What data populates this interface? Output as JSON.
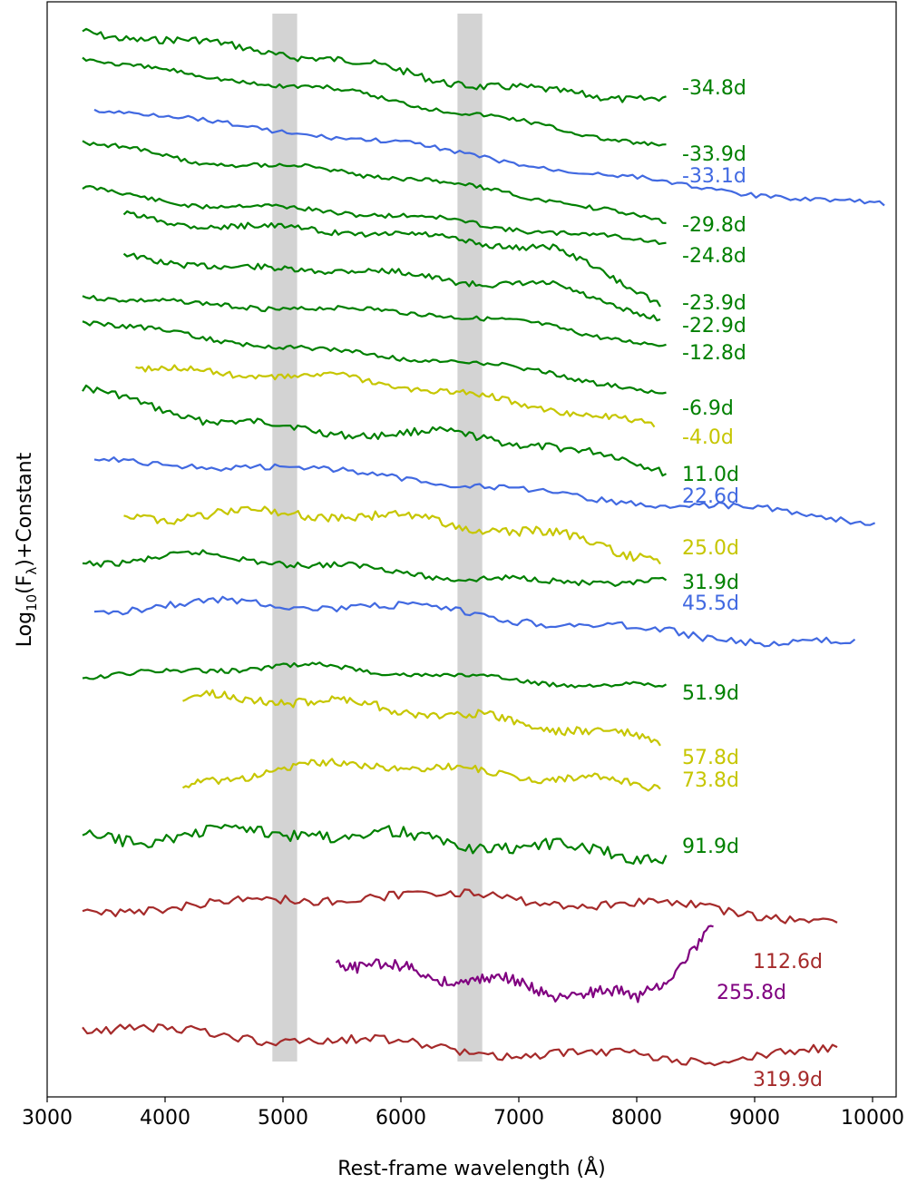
{
  "chart_data": {
    "type": "line",
    "title": "",
    "xlabel": "Rest-frame wavelength (Å)",
    "ylabel_base": "Log",
    "ylabel_sub": "10",
    "ylabel_mid": "(F",
    "ylabel_lambda": "λ",
    "ylabel_tail": ")+Constant",
    "xlim": [
      3000,
      10200
    ],
    "xticks": [
      3000,
      4000,
      5000,
      6000,
      7000,
      8000,
      9000,
      10000
    ],
    "yticks_shown": false,
    "grid": false,
    "legend": "none",
    "shaded_bands": [
      {
        "x0": 4910,
        "x1": 5120,
        "color": "#d3d3d3"
      },
      {
        "x0": 6480,
        "x1": 6690,
        "color": "#d3d3d3"
      }
    ],
    "colors": {
      "green": "#008000",
      "blue": "#4169e1",
      "yellow": "#c6c600",
      "brown": "#a52a2a",
      "purple": "#800080"
    },
    "series": [
      {
        "label": "-34.8d",
        "color": "green",
        "xmin": 3300,
        "xmax": 8250,
        "y": [
          34,
          48,
          62,
          86,
          103,
          107
        ],
        "noise": 5
      },
      {
        "label": "-33.9d",
        "color": "green",
        "xmin": 3300,
        "xmax": 8250,
        "y": [
          62,
          85,
          96,
          118,
          140,
          163
        ],
        "noise": 3
      },
      {
        "label": "-33.1d",
        "color": "blue",
        "xmin": 3400,
        "xmax": 10100,
        "y": [
          120,
          140,
          160,
          188,
          210,
          227
        ],
        "noise": 3
      },
      {
        "label": "-29.8d",
        "color": "green",
        "xmin": 3300,
        "xmax": 8250,
        "y": [
          157,
          178,
          186,
          200,
          220,
          246
        ],
        "noise": 3
      },
      {
        "label": "-24.8d",
        "color": "green",
        "xmin": 3300,
        "xmax": 8250,
        "y": [
          208,
          226,
          231,
          241,
          256,
          267
        ],
        "noise": 3
      },
      {
        "label": "-23.9d",
        "color": "green",
        "xmin": 3650,
        "xmax": 8200,
        "y": [
          238,
          250,
          254,
          263,
          274,
          332
        ],
        "noise": 4
      },
      {
        "label": "-22.9d",
        "color": "green",
        "xmin": 3650,
        "xmax": 8200,
        "y": [
          280,
          297,
          296,
          308,
          316,
          350
        ],
        "noise": 4
      },
      {
        "label": "-12.8d",
        "color": "green",
        "xmin": 3300,
        "xmax": 8250,
        "y": [
          325,
          336,
          340,
          345,
          360,
          382
        ],
        "noise": 3
      },
      {
        "label": "-6.9d",
        "color": "green",
        "xmin": 3300,
        "xmax": 8250,
        "y": [
          353,
          372,
          386,
          396,
          410,
          437
        ],
        "noise": 3
      },
      {
        "label": "-4.0d",
        "color": "yellow",
        "xmin": 3750,
        "xmax": 8150,
        "y": [
          406,
          412,
          416,
          432,
          450,
          470
        ],
        "noise": 4
      },
      {
        "label": "11.0d",
        "color": "green",
        "xmin": 3300,
        "xmax": 8250,
        "y": [
          430,
          460,
          476,
          478,
          490,
          520
        ],
        "noise": 5
      },
      {
        "label": "22.6d",
        "color": "blue",
        "xmin": 3400,
        "xmax": 10020,
        "y": [
          508,
          514,
          525,
          548,
          558,
          575
        ],
        "noise": 4
      },
      {
        "label": "25.0d",
        "color": "yellow",
        "xmin": 3650,
        "xmax": 8200,
        "y": [
          570,
          566,
          566,
          576,
          590,
          615
        ],
        "noise": 6
      },
      {
        "label": "31.9d",
        "color": "green",
        "xmin": 3300,
        "xmax": 8250,
        "y": [
          620,
          612,
          622,
          634,
          642,
          640
        ],
        "noise": 4
      },
      {
        "label": "45.5d",
        "color": "blue",
        "xmin": 3400,
        "xmax": 9850,
        "y": [
          672,
          664,
          670,
          685,
          702,
          710
        ],
        "noise": 5
      },
      {
        "label": "51.9d",
        "color": "green",
        "xmin": 3300,
        "xmax": 8250,
        "y": [
          748,
          738,
          734,
          744,
          752,
          758
        ],
        "noise": 3
      },
      {
        "label": "57.8d",
        "color": "yellow",
        "xmin": 4150,
        "xmax": 8200,
        "y": [
          770,
          770,
          778,
          790,
          802,
          818
        ],
        "noise": 6
      },
      {
        "label": "73.8d",
        "color": "yellow",
        "xmin": 4150,
        "xmax": 8200,
        "y": [
          870,
          846,
          842,
          850,
          858,
          866
        ],
        "noise": 5
      },
      {
        "label": "91.9d",
        "color": "green",
        "xmin": 3300,
        "xmax": 8250,
        "y": [
          924,
          920,
          916,
          926,
          936,
          942
        ],
        "noise": 8
      },
      {
        "label": "112.6d",
        "color": "brown",
        "xmin": 3300,
        "xmax": 9700,
        "y": [
          1004,
          996,
          986,
          992,
          1000,
          1014
        ],
        "noise": 6
      },
      {
        "label": "255.8d",
        "color": "purple",
        "xmin": 5450,
        "xmax": 8650,
        "y": [
          1058,
          1072,
          1080,
          1094,
          1100,
          1026
        ],
        "noise": 8
      },
      {
        "label": "319.9d",
        "color": "brown",
        "xmin": 3300,
        "xmax": 9700,
        "y": [
          1132,
          1142,
          1150,
          1162,
          1166,
          1160
        ],
        "noise": 6
      }
    ],
    "epoch_labels": [
      {
        "text": "-34.8d",
        "color": "green"
      },
      {
        "text": "-33.9d",
        "color": "green"
      },
      {
        "text": "-33.1d",
        "color": "blue"
      },
      {
        "text": "-29.8d",
        "color": "green"
      },
      {
        "text": "-24.8d",
        "color": "green"
      },
      {
        "text": "-23.9d",
        "color": "green"
      },
      {
        "text": "-22.9d",
        "color": "green"
      },
      {
        "text": "-12.8d",
        "color": "green"
      },
      {
        "text": "-6.9d",
        "color": "green"
      },
      {
        "text": "-4.0d",
        "color": "yellow"
      },
      {
        "text": "11.0d",
        "color": "green"
      },
      {
        "text": "22.6d",
        "color": "blue"
      },
      {
        "text": "25.0d",
        "color": "yellow"
      },
      {
        "text": "31.9d",
        "color": "green"
      },
      {
        "text": "45.5d",
        "color": "blue"
      },
      {
        "text": "51.9d",
        "color": "green"
      },
      {
        "text": "57.8d",
        "color": "yellow"
      },
      {
        "text": "73.8d",
        "color": "yellow"
      },
      {
        "text": "91.9d",
        "color": "green"
      },
      {
        "text": "112.6d",
        "color": "brown"
      },
      {
        "text": "255.8d",
        "color": "purple"
      },
      {
        "text": "319.9d",
        "color": "brown"
      }
    ]
  }
}
